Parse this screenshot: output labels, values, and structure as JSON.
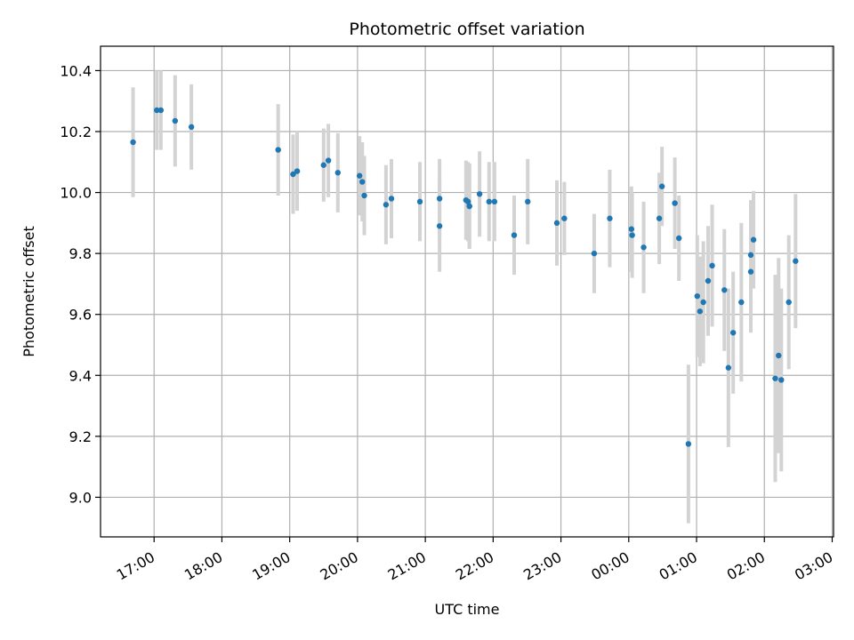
{
  "chart_data": {
    "type": "scatter",
    "title": "Photometric offset variation",
    "xlabel": "UTC time",
    "ylabel": "Photometric offset",
    "x_tick_labels": [
      "17:00",
      "18:00",
      "19:00",
      "20:00",
      "21:00",
      "22:00",
      "23:00",
      "00:00",
      "01:00",
      "02:00",
      "03:00"
    ],
    "y_ticks": [
      9.0,
      9.2,
      9.4,
      9.6,
      9.8,
      10.0,
      10.2,
      10.4
    ],
    "y_tick_labels": [
      "9.0",
      "9.2",
      "9.4",
      "9.6",
      "9.8",
      "10.0",
      "10.2",
      "10.4"
    ],
    "ylim": [
      8.87,
      10.48
    ],
    "xlim_hours_utc_from_17h": [
      -0.79,
      10.02
    ],
    "grid": true,
    "marker_color": "#1f77b4",
    "errorbar_color": "#d3d3d3",
    "series": [
      {
        "x": [
          -0.31,
          0.04,
          0.1,
          0.31,
          0.55,
          1.83,
          2.05,
          2.11,
          2.5,
          2.57,
          2.71,
          3.03,
          3.07,
          3.1,
          3.42,
          3.5,
          3.92,
          4.21,
          4.21,
          4.6,
          4.63,
          4.65,
          4.65,
          4.8,
          4.94,
          5.02,
          5.31,
          5.51,
          5.94,
          6.05,
          6.49,
          6.72,
          7.04,
          7.05,
          7.22,
          7.45,
          7.49,
          7.68,
          7.74,
          7.88,
          8.01,
          8.05,
          8.1,
          8.17,
          8.23,
          8.41,
          8.47,
          8.54,
          8.66,
          8.8,
          8.8,
          8.84,
          9.16,
          9.21,
          9.25,
          9.36,
          9.46
        ],
        "y": [
          10.165,
          10.27,
          10.27,
          10.235,
          10.215,
          10.14,
          10.06,
          10.07,
          10.09,
          10.105,
          10.065,
          10.055,
          10.035,
          9.99,
          9.96,
          9.98,
          9.97,
          9.98,
          9.89,
          9.975,
          9.97,
          9.955,
          9.955,
          9.995,
          9.97,
          9.97,
          9.86,
          9.97,
          9.9,
          9.915,
          9.8,
          9.915,
          9.88,
          9.86,
          9.82,
          9.915,
          10.02,
          9.965,
          9.85,
          9.175,
          9.66,
          9.61,
          9.64,
          9.71,
          9.76,
          9.68,
          9.425,
          9.54,
          9.64,
          9.795,
          9.74,
          9.845,
          9.39,
          9.465,
          9.385,
          9.64,
          9.775
        ],
        "yerr": [
          0.18,
          0.13,
          0.13,
          0.15,
          0.14,
          0.15,
          0.13,
          0.13,
          0.12,
          0.12,
          0.13,
          0.13,
          0.13,
          0.13,
          0.13,
          0.13,
          0.13,
          0.13,
          0.15,
          0.13,
          0.13,
          0.14,
          0.14,
          0.14,
          0.13,
          0.13,
          0.13,
          0.14,
          0.14,
          0.12,
          0.13,
          0.16,
          0.14,
          0.14,
          0.15,
          0.15,
          0.13,
          0.15,
          0.14,
          0.26,
          0.2,
          0.18,
          0.2,
          0.18,
          0.2,
          0.2,
          0.26,
          0.2,
          0.26,
          0.18,
          0.2,
          0.16,
          0.34,
          0.32,
          0.3,
          0.22,
          0.22
        ]
      }
    ]
  }
}
